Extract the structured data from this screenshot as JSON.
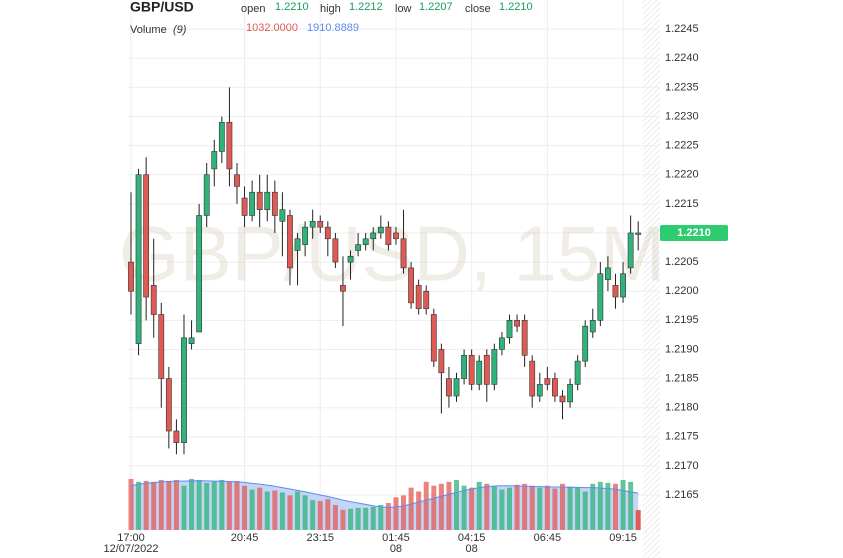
{
  "chart_data": {
    "type": "candlestick",
    "title": "GBP/USD",
    "header": {
      "open_label": "open",
      "open": "1.2210",
      "high_label": "high",
      "high": "1.2212",
      "low_label": "low",
      "low": "1.2207",
      "close_label": "close",
      "close": "1.2210"
    },
    "watermark": "GBP/USD, 15M",
    "categories": [
      "17:00",
      null,
      null,
      null,
      null,
      null,
      null,
      null,
      null,
      null,
      null,
      null,
      null,
      null,
      null,
      "20:45",
      null,
      null,
      null,
      null,
      null,
      null,
      null,
      null,
      null,
      "23:15",
      null,
      null,
      null,
      null,
      null,
      null,
      null,
      null,
      null,
      "01:45",
      null,
      null,
      null,
      null,
      null,
      null,
      null,
      null,
      null,
      "04:15",
      null,
      null,
      null,
      null,
      null,
      null,
      null,
      null,
      null,
      "06:45",
      null,
      null,
      null,
      null,
      null,
      null,
      null,
      null,
      null,
      "09:15",
      null,
      null
    ],
    "category_dates": [
      "12/07/2022",
      null,
      null,
      null,
      null,
      null,
      null,
      null,
      null,
      null,
      null,
      null,
      null,
      null,
      null,
      null,
      null,
      null,
      null,
      null,
      null,
      null,
      null,
      null,
      null,
      null,
      null,
      null,
      null,
      null,
      null,
      null,
      null,
      null,
      null,
      "08",
      null,
      null,
      null,
      null,
      null,
      null,
      null,
      null,
      null,
      "08",
      null,
      null,
      null,
      null,
      null,
      null,
      null,
      null,
      null,
      null,
      null,
      null,
      null,
      null,
      null,
      null,
      null,
      null,
      null,
      null,
      null,
      null
    ],
    "series": [
      {
        "name": "GBP/USD",
        "open": [
          1.2205,
          1.2191,
          1.222,
          1.2201,
          1.2196,
          1.2185,
          1.2176,
          1.2174,
          1.2191,
          1.2193,
          1.2213,
          1.2221,
          1.2224,
          1.2229,
          1.222,
          1.2216,
          1.2213,
          1.2217,
          1.2214,
          1.2217,
          1.2212,
          1.2213,
          1.2207,
          1.2208,
          1.2211,
          1.2212,
          1.2211,
          1.2209,
          1.2201,
          1.2205,
          1.2207,
          1.2208,
          1.2209,
          1.221,
          1.2211,
          1.221,
          1.2209,
          1.2204,
          1.2201,
          1.22,
          1.2196,
          1.219,
          1.2185,
          1.2182,
          1.2185,
          1.2189,
          1.2184,
          1.2189,
          1.2184,
          1.219,
          1.2192,
          1.2195,
          1.2195,
          1.2188,
          1.2182,
          1.2185,
          1.2185,
          1.2182,
          1.2181,
          1.2184,
          1.2188,
          1.2193,
          1.2195,
          1.2202,
          1.2201,
          1.2199,
          1.2204,
          1.221
        ],
        "high": [
          1.2217,
          1.2221,
          1.2223,
          1.2209,
          1.2198,
          1.2187,
          1.2178,
          1.2196,
          1.2195,
          1.2215,
          1.2222,
          1.2226,
          1.223,
          1.2235,
          1.2222,
          1.2218,
          1.2219,
          1.222,
          1.222,
          1.2219,
          1.2217,
          1.2214,
          1.221,
          1.2212,
          1.2214,
          1.2213,
          1.2212,
          1.221,
          1.2206,
          1.2207,
          1.221,
          1.221,
          1.2211,
          1.2213,
          1.2212,
          1.2211,
          1.2214,
          1.2205,
          1.2202,
          1.2201,
          1.2197,
          1.2191,
          1.2187,
          1.2186,
          1.219,
          1.219,
          1.2189,
          1.219,
          1.2191,
          1.2193,
          1.2196,
          1.2196,
          1.2196,
          1.2189,
          1.2186,
          1.2187,
          1.2186,
          1.2183,
          1.2185,
          1.2189,
          1.2195,
          1.2197,
          1.2205,
          1.2206,
          1.2203,
          1.2205,
          1.2213,
          1.2212
        ],
        "low": [
          1.2196,
          1.2189,
          1.2195,
          1.2192,
          1.218,
          1.2173,
          1.2172,
          1.2172,
          1.219,
          1.2193,
          1.2211,
          1.2218,
          1.2222,
          1.2218,
          1.2215,
          1.2211,
          1.2212,
          1.2211,
          1.2212,
          1.221,
          1.2206,
          1.2201,
          1.2201,
          1.2206,
          1.2209,
          1.221,
          1.2206,
          1.2204,
          1.2194,
          1.2202,
          1.2206,
          1.2207,
          1.2207,
          1.2209,
          1.2207,
          1.2208,
          1.2203,
          1.2197,
          1.2196,
          1.2196,
          1.2187,
          1.2179,
          1.218,
          1.2181,
          1.2184,
          1.2183,
          1.2183,
          1.2181,
          1.2183,
          1.2189,
          1.2191,
          1.2193,
          1.2187,
          1.218,
          1.2181,
          1.2183,
          1.2181,
          1.2178,
          1.218,
          1.2183,
          1.2187,
          1.2192,
          1.2194,
          1.22,
          1.2197,
          1.2198,
          1.2203,
          1.2207
        ],
        "close": [
          1.22,
          1.222,
          1.2199,
          1.2196,
          1.2185,
          1.2176,
          1.2174,
          1.2192,
          1.2192,
          1.2213,
          1.222,
          1.2224,
          1.2229,
          1.2221,
          1.2218,
          1.2213,
          1.2217,
          1.2214,
          1.2217,
          1.2213,
          1.2214,
          1.2204,
          1.2209,
          1.2211,
          1.2212,
          1.2211,
          1.2209,
          1.2205,
          1.22,
          1.2206,
          1.2208,
          1.2209,
          1.221,
          1.2211,
          1.2208,
          1.2209,
          1.2204,
          1.2198,
          1.2197,
          1.2197,
          1.2188,
          1.2186,
          1.2182,
          1.2185,
          1.2189,
          1.2184,
          1.2188,
          1.2184,
          1.219,
          1.2192,
          1.2195,
          1.2194,
          1.2189,
          1.2182,
          1.2184,
          1.2184,
          1.2182,
          1.2181,
          1.2184,
          1.2188,
          1.2194,
          1.2195,
          1.2203,
          1.2204,
          1.2199,
          1.2203,
          1.221,
          1.221
        ]
      }
    ],
    "up_color": "#2fb37a",
    "down_color": "#e05a55",
    "ylim": [
      1.2159,
      1.225
    ],
    "yticks": [
      {
        "value": 1.2165,
        "label": "1.2165"
      },
      {
        "value": 1.217,
        "label": "1.2170"
      },
      {
        "value": 1.2175,
        "label": "1.2175"
      },
      {
        "value": 1.218,
        "label": "1.2180"
      },
      {
        "value": 1.2185,
        "label": "1.2185"
      },
      {
        "value": 1.219,
        "label": "1.2190"
      },
      {
        "value": 1.2195,
        "label": "1.2195"
      },
      {
        "value": 1.22,
        "label": "1.2200"
      },
      {
        "value": 1.2205,
        "label": "1.2205"
      },
      {
        "value": 1.221,
        "label": "1.2210"
      },
      {
        "value": 1.2215,
        "label": "1.2215"
      },
      {
        "value": 1.222,
        "label": "1.2220"
      },
      {
        "value": 1.2225,
        "label": "1.2225"
      },
      {
        "value": 1.223,
        "label": "1.2230"
      },
      {
        "value": 1.2235,
        "label": "1.2235"
      },
      {
        "value": 1.224,
        "label": "1.2240"
      },
      {
        "value": 1.2245,
        "label": "1.2245"
      }
    ],
    "last_price": {
      "value": 1.221,
      "label": "1.2210",
      "color": "#2ecc71"
    },
    "grid": true,
    "volume": {
      "name": "Volume",
      "period": "(9)",
      "ylim": [
        0,
        2700
      ],
      "values": [
        2650,
        2500,
        2550,
        2500,
        2600,
        2550,
        2600,
        2300,
        2650,
        2600,
        2450,
        2550,
        2600,
        2500,
        2550,
        2300,
        2100,
        2200,
        2000,
        2050,
        1950,
        1800,
        2000,
        1800,
        1550,
        1500,
        1600,
        1300,
        1050,
        1100,
        1150,
        1150,
        1200,
        1300,
        1400,
        1700,
        1800,
        2200,
        2000,
        2500,
        2300,
        2400,
        2500,
        2600,
        2300,
        2200,
        2500,
        2400,
        2300,
        2100,
        2200,
        2350,
        2400,
        2300,
        2200,
        2300,
        2150,
        2400,
        2250,
        2200,
        2000,
        2400,
        2500,
        2450,
        2400,
        2600,
        2500,
        1032
      ],
      "legend_value": "1032.0000",
      "legend_color": "#e05a55",
      "ma": {
        "color": "#5b8def",
        "fill": "#b7cbf2",
        "values": [
          2300,
          2380,
          2420,
          2460,
          2500,
          2520,
          2540,
          2540,
          2550,
          2560,
          2550,
          2540,
          2540,
          2520,
          2500,
          2470,
          2420,
          2380,
          2330,
          2270,
          2200,
          2130,
          2060,
          1980,
          1900,
          1820,
          1740,
          1650,
          1550,
          1470,
          1400,
          1330,
          1250,
          1200,
          1170,
          1200,
          1250,
          1350,
          1450,
          1550,
          1650,
          1750,
          1850,
          1950,
          2050,
          2130,
          2200,
          2250,
          2280,
          2300,
          2300,
          2290,
          2270,
          2260,
          2250,
          2240,
          2230,
          2230,
          2220,
          2210,
          2200,
          2200,
          2180,
          2150,
          2120,
          2050,
          1980,
          1910.8889
        ],
        "legend_value": "1910.8889"
      }
    }
  }
}
